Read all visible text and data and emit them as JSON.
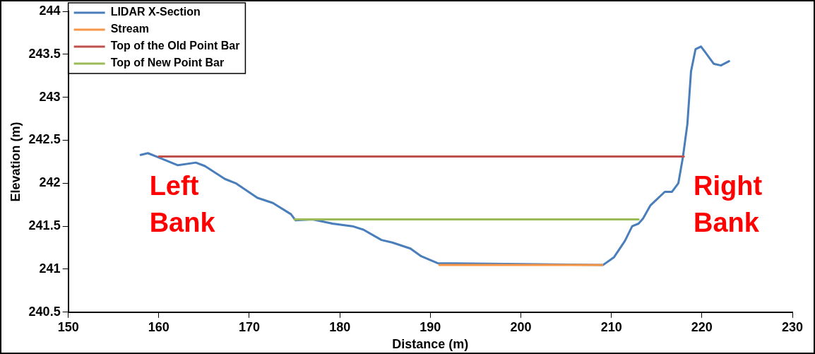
{
  "chart_data": {
    "type": "line",
    "xlabel": "Distance (m)",
    "ylabel": "Elevation (m)",
    "xlim": [
      150,
      230
    ],
    "xticks": [
      150,
      160,
      170,
      180,
      190,
      200,
      210,
      220,
      230
    ],
    "ylim": [
      240.5,
      244
    ],
    "yticks": [
      240.5,
      241,
      241.5,
      242,
      242.5,
      243,
      243.5,
      244
    ],
    "grid": false,
    "legend": "top left",
    "marker": "none",
    "line_style": "solid",
    "annotations": [
      "Left Bank",
      "Right Bank"
    ],
    "series": [
      {
        "name": "LIDAR X-Section",
        "color": "#4a7ebb",
        "x": [
          158,
          158.8,
          160,
          162.1,
          164.1,
          165.1,
          167.3,
          168.5,
          170.9,
          172.6,
          174.6,
          175.1,
          177,
          179.2,
          181.4,
          182.6,
          184.6,
          185.8,
          187.8,
          189,
          190.8,
          209.1,
          210.3,
          211.5,
          212.3,
          213,
          213.5,
          214.3,
          215.9,
          216.7,
          217.4,
          217.9,
          218.4,
          218.8,
          219.3,
          219.9,
          220.4,
          221.3,
          222.1,
          223
        ],
        "values": [
          242.33,
          242.35,
          242.3,
          242.21,
          242.24,
          242.2,
          242.05,
          242.0,
          241.83,
          241.77,
          241.64,
          241.57,
          241.58,
          241.53,
          241.5,
          241.46,
          241.34,
          241.31,
          241.24,
          241.15,
          241.07,
          241.05,
          241.14,
          241.33,
          241.5,
          241.53,
          241.59,
          241.74,
          241.9,
          241.9,
          242.0,
          242.3,
          242.69,
          243.3,
          243.56,
          243.59,
          243.52,
          243.39,
          243.37,
          243.42
        ]
      },
      {
        "name": "Stream",
        "color": "#f79646",
        "x": [
          191,
          209
        ],
        "values": [
          241.05,
          241.05
        ]
      },
      {
        "name": "Top of the Old Point Bar",
        "color": "#c0504d",
        "x": [
          160,
          218
        ],
        "values": [
          242.31,
          242.31
        ]
      },
      {
        "name": "Top of New Point Bar",
        "color": "#9bbb59",
        "x": [
          175,
          213
        ],
        "values": [
          241.58,
          241.58
        ]
      }
    ]
  }
}
